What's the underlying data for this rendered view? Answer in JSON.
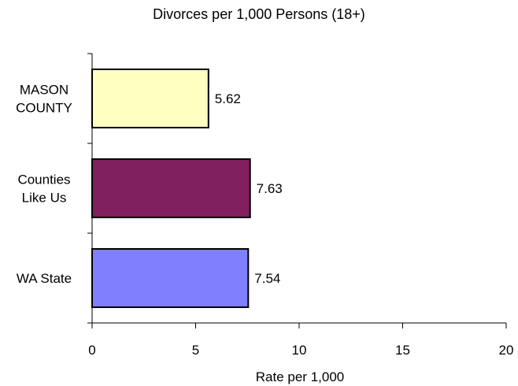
{
  "chart_data": {
    "type": "bar",
    "orientation": "horizontal",
    "title": "Divorces per 1,000 Persons (18+)",
    "xlabel": "Rate per 1,000",
    "ylabel": "",
    "xlim": [
      0,
      20
    ],
    "x_ticks": [
      0,
      5,
      10,
      15,
      20
    ],
    "grid": false,
    "legend": "none",
    "categories": [
      [
        "MASON",
        "COUNTY"
      ],
      [
        "Counties",
        "Like Us"
      ],
      [
        "WA State"
      ]
    ],
    "values": [
      5.62,
      7.63,
      7.54
    ],
    "data_labels": [
      "5.62",
      "7.63",
      "7.54"
    ],
    "colors": [
      "#FFFFC0",
      "#80205F",
      "#8080FF"
    ],
    "bar_edge_color": "#000000"
  }
}
